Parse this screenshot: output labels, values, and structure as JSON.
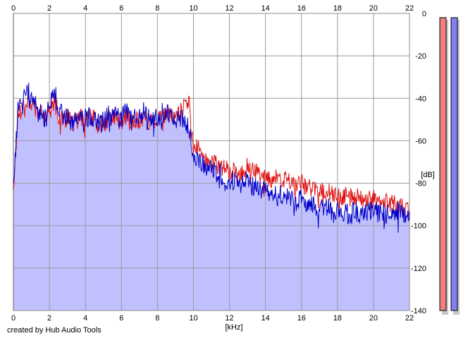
{
  "chart_data": {
    "type": "line",
    "xlabel": "[kHz]",
    "ylabel": "[dB]",
    "xlim": [
      0,
      22
    ],
    "ylim": [
      -140,
      0
    ],
    "x_ticks": [
      0,
      2,
      4,
      6,
      8,
      10,
      12,
      14,
      16,
      18,
      20,
      22
    ],
    "y_ticks": [
      0,
      -20,
      -40,
      -60,
      -80,
      -100,
      -120,
      -140
    ],
    "x_tick_labels": [
      "0",
      "2",
      "4",
      "6",
      "8",
      "10",
      "12",
      "14",
      "16",
      "18",
      "20",
      "22"
    ],
    "y_tick_labels": [
      "0",
      "-20",
      "-40",
      "-60",
      "-80",
      "-100",
      "-120",
      "-140"
    ],
    "grid": true,
    "series": [
      {
        "color": "#e01010",
        "x": [
          0,
          0.25,
          0.5,
          0.75,
          1,
          1.25,
          1.5,
          1.75,
          2,
          2.25,
          2.5,
          2.75,
          3,
          3.25,
          3.5,
          3.75,
          4,
          4.25,
          4.5,
          4.75,
          5,
          5.25,
          5.5,
          5.75,
          6,
          6.25,
          6.5,
          6.75,
          7,
          7.25,
          7.5,
          7.75,
          8,
          8.25,
          8.5,
          8.75,
          9,
          9.25,
          9.5,
          9.75,
          10,
          10.25,
          10.5,
          10.75,
          11,
          11.25,
          11.5,
          11.75,
          12,
          12.25,
          12.5,
          12.75,
          13,
          13.25,
          13.5,
          13.75,
          14,
          14.25,
          14.5,
          14.75,
          15,
          15.25,
          15.5,
          15.75,
          16,
          16.25,
          16.5,
          16.75,
          17,
          17.25,
          17.5,
          17.75,
          18,
          18.25,
          18.5,
          18.75,
          19,
          19.25,
          19.5,
          19.75,
          20,
          20.25,
          20.5,
          20.75,
          21,
          21.25,
          21.5,
          21.75,
          22
        ],
        "values": [
          -83,
          -48,
          -44,
          -40,
          -42,
          -45,
          -47,
          -50,
          -46,
          -41,
          -47,
          -50,
          -49,
          -52,
          -50,
          -48,
          -51,
          -49,
          -50,
          -53,
          -52,
          -50,
          -49,
          -50,
          -51,
          -48,
          -52,
          -50,
          -50,
          -49,
          -51,
          -50,
          -50,
          -48,
          -49,
          -48,
          -48,
          -47,
          -43,
          -42,
          -61,
          -64,
          -67,
          -68,
          -70,
          -71,
          -72,
          -73,
          -74,
          -75,
          -74,
          -76,
          -72,
          -74,
          -74,
          -77,
          -76,
          -78,
          -77,
          -80,
          -78,
          -79,
          -80,
          -81,
          -80,
          -82,
          -82,
          -83,
          -84,
          -84,
          -84,
          -86,
          -85,
          -86,
          -86,
          -87,
          -86,
          -88,
          -87,
          -88,
          -87,
          -88,
          -88,
          -89,
          -88,
          -90,
          -90,
          -91,
          -92
        ]
      },
      {
        "color": "#0000c8",
        "x": [
          0,
          0.25,
          0.5,
          0.75,
          1,
          1.25,
          1.5,
          1.75,
          2,
          2.25,
          2.5,
          2.75,
          3,
          3.25,
          3.5,
          3.75,
          4,
          4.25,
          4.5,
          4.75,
          5,
          5.25,
          5.5,
          5.75,
          6,
          6.25,
          6.5,
          6.75,
          7,
          7.25,
          7.5,
          7.75,
          8,
          8.25,
          8.5,
          8.75,
          9,
          9.25,
          9.5,
          9.75,
          10,
          10.25,
          10.5,
          10.75,
          11,
          11.25,
          11.5,
          11.75,
          12,
          12.25,
          12.5,
          12.75,
          13,
          13.25,
          13.5,
          13.75,
          14,
          14.25,
          14.5,
          14.75,
          15,
          15.25,
          15.5,
          15.75,
          16,
          16.25,
          16.5,
          16.75,
          17,
          17.25,
          17.5,
          17.75,
          18,
          18.25,
          18.5,
          18.75,
          19,
          19.25,
          19.5,
          19.75,
          20,
          20.25,
          20.5,
          20.75,
          21,
          21.25,
          21.5,
          21.75,
          22
        ],
        "values": [
          -80,
          -46,
          -40,
          -35,
          -38,
          -43,
          -46,
          -49,
          -43,
          -36,
          -44,
          -49,
          -48,
          -51,
          -49,
          -46,
          -50,
          -48,
          -49,
          -52,
          -51,
          -48,
          -49,
          -48,
          -51,
          -44,
          -51,
          -49,
          -48,
          -46,
          -50,
          -48,
          -49,
          -47,
          -48,
          -48,
          -49,
          -50,
          -51,
          -53,
          -68,
          -70,
          -71,
          -72,
          -73,
          -75,
          -76,
          -79,
          -80,
          -78,
          -82,
          -80,
          -78,
          -82,
          -80,
          -84,
          -82,
          -86,
          -85,
          -87,
          -84,
          -86,
          -88,
          -90,
          -86,
          -91,
          -89,
          -92,
          -91,
          -93,
          -90,
          -94,
          -92,
          -94,
          -93,
          -95,
          -92,
          -96,
          -93,
          -94,
          -92,
          -95,
          -93,
          -95,
          -92,
          -94,
          -93,
          -95,
          -94
        ]
      }
    ],
    "level_meters": [
      {
        "color": "#f08080",
        "level_db": -2
      },
      {
        "color": "#8080f0",
        "level_db": -2
      }
    ],
    "fill_color": "#c0c0ff"
  },
  "footer": {
    "credit": "created by Hub Audio Tools"
  }
}
